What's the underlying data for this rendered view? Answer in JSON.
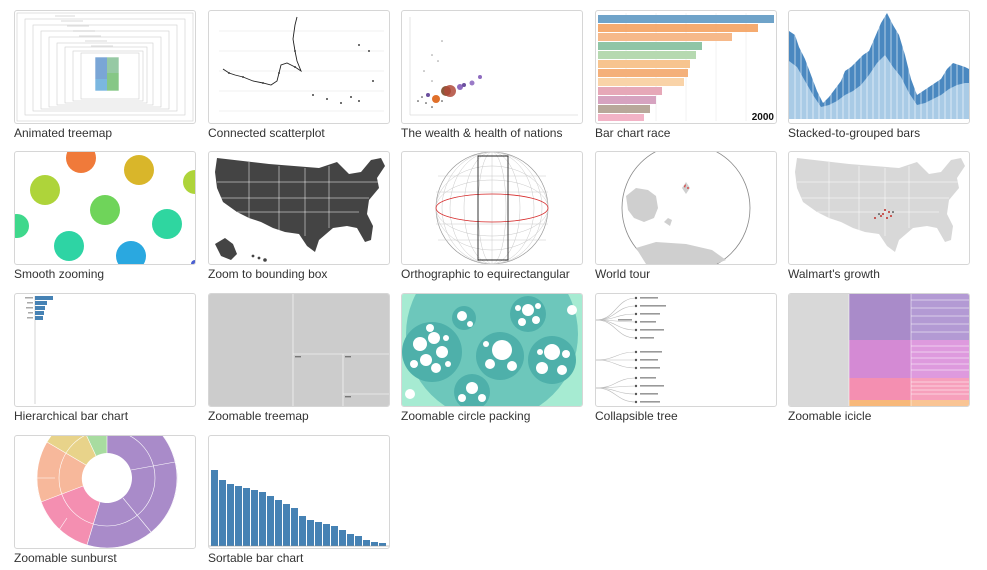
{
  "gallery": {
    "items": [
      {
        "label": "Animated treemap"
      },
      {
        "label": "Connected scatterplot"
      },
      {
        "label": "The wealth & health of nations"
      },
      {
        "label": "Bar chart race",
        "year": "2000"
      },
      {
        "label": "Stacked-to-grouped bars"
      },
      {
        "label": "Smooth zooming"
      },
      {
        "label": "Zoom to bounding box"
      },
      {
        "label": "Orthographic to equirectangular"
      },
      {
        "label": "World tour"
      },
      {
        "label": "Walmart's growth"
      },
      {
        "label": "Hierarchical bar chart"
      },
      {
        "label": "Zoomable treemap"
      },
      {
        "label": "Zoomable circle packing"
      },
      {
        "label": "Collapsible tree"
      },
      {
        "label": "Zoomable icicle"
      },
      {
        "label": "Zoomable sunburst"
      },
      {
        "label": "Sortable bar chart"
      }
    ]
  },
  "colors": {
    "steelblue": "#4682b4",
    "mapgray": "#444444",
    "packing_teal": "#5fbfb4",
    "packing_mint": "#a6ebd2"
  }
}
